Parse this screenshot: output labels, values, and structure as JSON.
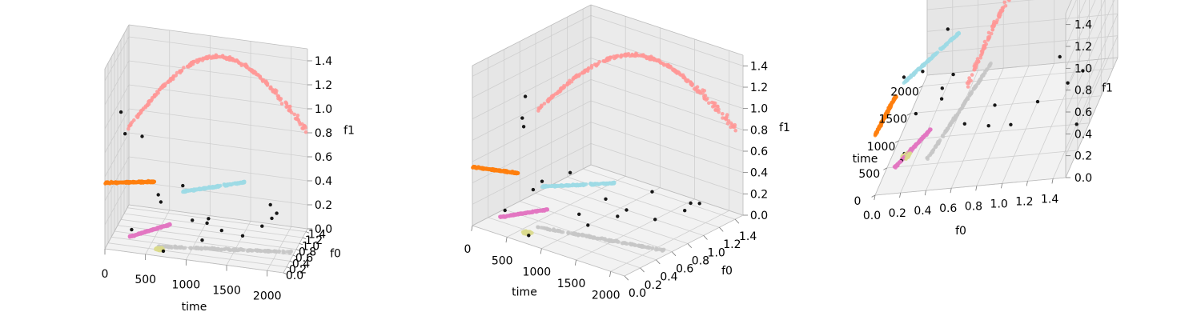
{
  "colors": {
    "pane_floor": "#f2f2f2",
    "pane_left": "#e6e6e6",
    "pane_back": "#ebebeb",
    "grid": "#cfcfcf",
    "edge": "#777777",
    "tick_text": "#000000",
    "clusters": {
      "pink": "#ff9896",
      "cyan": "#9edae5",
      "orange": "#ff7f0e",
      "magenta": "#e377c2",
      "gray": "#c7c7c7",
      "olive": "#dbdb8d",
      "noise": "#000000"
    }
  },
  "chart_data": [
    {
      "type": "scatter3d",
      "view": "front",
      "xlabel": "time",
      "ylabel": "f0",
      "zlabel": "f1",
      "xlim": [
        0,
        2200
      ],
      "ylim": [
        0,
        1.5
      ],
      "zlim": [
        0,
        1.5
      ],
      "x_ticks": [
        "0",
        "500",
        "1000",
        "1500",
        "2000"
      ],
      "y_ticks": [
        "0.0",
        "0.2",
        "0.4",
        "0.6",
        "0.8",
        "1.0",
        "1.2",
        "1.4"
      ],
      "z_ticks": [
        "0.0",
        "0.2",
        "0.4",
        "0.6",
        "0.8",
        "1.0",
        "1.2",
        "1.4"
      ],
      "grid": true
    },
    {
      "type": "scatter3d",
      "view": "oblique",
      "xlabel": "time",
      "ylabel": "f0",
      "zlabel": "f1",
      "xlim": [
        0,
        2200
      ],
      "ylim": [
        0,
        1.5
      ],
      "zlim": [
        0,
        1.5
      ],
      "x_ticks": [
        "0",
        "500",
        "1000",
        "1500",
        "2000"
      ],
      "y_ticks": [
        "0.0",
        "0.2",
        "0.4",
        "0.6",
        "0.8",
        "1.0",
        "1.2",
        "1.4"
      ],
      "z_ticks": [
        "0.0",
        "0.2",
        "0.4",
        "0.6",
        "0.8",
        "1.0",
        "1.2",
        "1.4"
      ],
      "grid": true
    },
    {
      "type": "scatter3d",
      "view": "side",
      "xlabel": "time",
      "ylabel": "f0",
      "zlabel": "f1",
      "xlim": [
        0,
        2200
      ],
      "ylim": [
        0,
        1.5
      ],
      "zlim": [
        0,
        1.5
      ],
      "x_ticks": [
        "0",
        "500",
        "1000",
        "1500",
        "2000"
      ],
      "y_ticks": [
        "0.0",
        "0.2",
        "0.4",
        "0.6",
        "0.8",
        "1.0",
        "1.2",
        "1.4"
      ],
      "z_ticks": [
        "0.0",
        "0.2",
        "0.4",
        "0.6",
        "0.8",
        "1.0",
        "1.2",
        "1.4"
      ],
      "grid": true
    }
  ],
  "clusters": [
    {
      "color": "#ff9896",
      "t_range": [
        150,
        2200
      ],
      "f0_range": [
        0.7,
        1.4
      ],
      "f1_range": [
        0.85,
        1.45
      ],
      "shape": "arc"
    },
    {
      "color": "#9edae5",
      "t_range": [
        950,
        1650
      ],
      "f0_range": [
        0.05,
        0.35
      ],
      "f1_range": [
        0.55,
        0.62
      ],
      "shape": "line"
    },
    {
      "color": "#ff7f0e",
      "t_range": [
        0,
        600
      ],
      "f0_range": [
        0.0,
        0.05
      ],
      "f1_range": [
        0.55,
        0.6
      ],
      "shape": "line"
    },
    {
      "color": "#e377c2",
      "t_range": [
        280,
        750
      ],
      "f0_range": [
        0.1,
        0.3
      ],
      "f1_range": [
        0.1,
        0.2
      ],
      "shape": "line"
    },
    {
      "color": "#c7c7c7",
      "t_range": [
        600,
        2200
      ],
      "f0_range": [
        0.3,
        0.5
      ],
      "f1_range": [
        0.0,
        0.05
      ],
      "shape": "line"
    },
    {
      "color": "#dbdb8d",
      "t_range": [
        550,
        750
      ],
      "f0_range": [
        0.05,
        0.2
      ],
      "f1_range": [
        0.0,
        0.05
      ],
      "shape": "blob"
    }
  ]
}
